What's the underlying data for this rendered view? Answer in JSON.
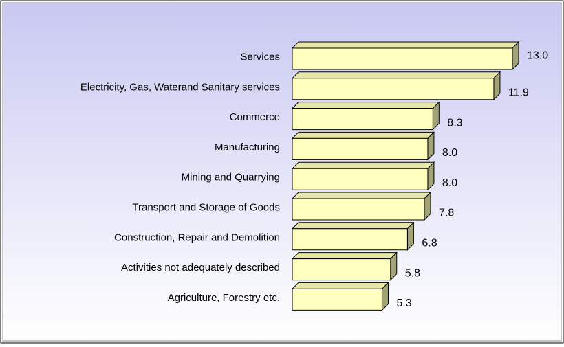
{
  "chart_data": {
    "type": "bar3d-horizontal",
    "categories": [
      "Services",
      "Electricity, Gas, Waterand Sanitary services",
      "Commerce",
      "Manufacturing",
      "Mining and Quarrying",
      "Transport and Storage of Goods",
      "Construction, Repair and Demolition",
      "Activities not adequately described",
      "Agriculture, Forestry etc."
    ],
    "values": [
      13.0,
      11.9,
      8.3,
      8.0,
      8.0,
      7.8,
      6.8,
      5.8,
      5.3
    ],
    "value_labels": [
      "13.0",
      "11.9",
      "8.3",
      "8.0",
      "8.0",
      "7.8",
      "6.8",
      "5.8",
      "5.3"
    ],
    "color": "#ffffc0",
    "xlim": [
      0,
      13
    ]
  }
}
